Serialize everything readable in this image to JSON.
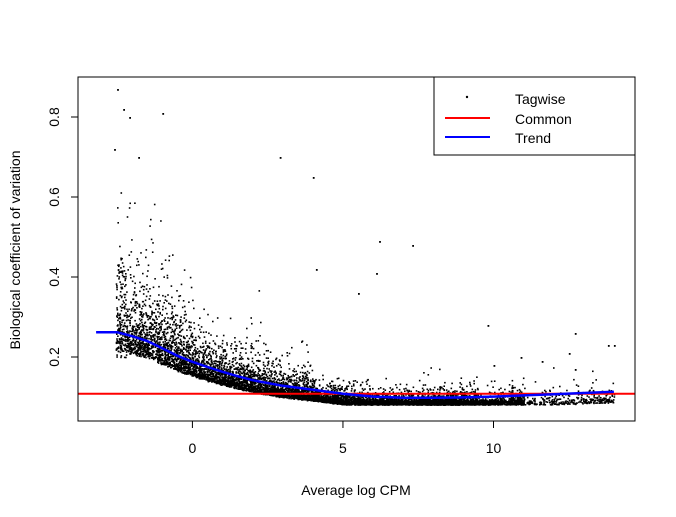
{
  "chart_data": {
    "type": "scatter",
    "title": "",
    "xlabel": "Average log CPM",
    "ylabel": "Biological coefficient of variation",
    "xlim": [
      -3.8,
      14.7
    ],
    "ylim": [
      0.04,
      0.9
    ],
    "x_ticks": [
      0,
      5,
      10
    ],
    "y_ticks": [
      0.2,
      0.4,
      0.6,
      0.8
    ],
    "grid": false,
    "legend_position": "top-right",
    "legend": [
      {
        "label": "Tagwise",
        "kind": "point",
        "color": "#000000"
      },
      {
        "label": "Common",
        "kind": "line",
        "color": "#ff0000"
      },
      {
        "label": "Trend",
        "kind": "line",
        "color": "#0000ff"
      }
    ],
    "series": [
      {
        "name": "Tagwise",
        "kind": "scatter",
        "color": "#000000",
        "n_points": 9000,
        "sample_points": [
          [
            -2.5,
            0.87
          ],
          [
            -2.3,
            0.82
          ],
          [
            -2.1,
            0.8
          ],
          [
            -1.0,
            0.81
          ],
          [
            -1.8,
            0.7
          ],
          [
            -2.6,
            0.72
          ],
          [
            2.9,
            0.7
          ],
          [
            4.0,
            0.65
          ],
          [
            6.2,
            0.49
          ],
          [
            7.3,
            0.48
          ],
          [
            4.1,
            0.42
          ],
          [
            6.1,
            0.41
          ],
          [
            5.5,
            0.36
          ],
          [
            9.8,
            0.28
          ],
          [
            12.7,
            0.26
          ],
          [
            13.8,
            0.23
          ],
          [
            14.0,
            0.23
          ],
          [
            12.5,
            0.21
          ],
          [
            10.9,
            0.2
          ],
          [
            11.6,
            0.19
          ],
          [
            12.7,
            0.17
          ],
          [
            10.0,
            0.18
          ]
        ]
      },
      {
        "name": "Common",
        "kind": "hline",
        "color": "#ff0000",
        "y": 0.108
      },
      {
        "name": "Trend",
        "kind": "line",
        "color": "#0000ff",
        "x": [
          -3.2,
          -2.5,
          -2.0,
          -1.5,
          -1.0,
          -0.5,
          0.0,
          0.5,
          1.0,
          1.5,
          2.0,
          3.0,
          4.0,
          5.0,
          6.0,
          7.0,
          8.0,
          9.0,
          10.0,
          11.0,
          12.0,
          13.0,
          14.0
        ],
        "y": [
          0.262,
          0.262,
          0.252,
          0.24,
          0.222,
          0.203,
          0.188,
          0.175,
          0.163,
          0.152,
          0.142,
          0.128,
          0.118,
          0.108,
          0.101,
          0.098,
          0.098,
          0.099,
          0.101,
          0.104,
          0.107,
          0.11,
          0.113
        ]
      }
    ]
  }
}
